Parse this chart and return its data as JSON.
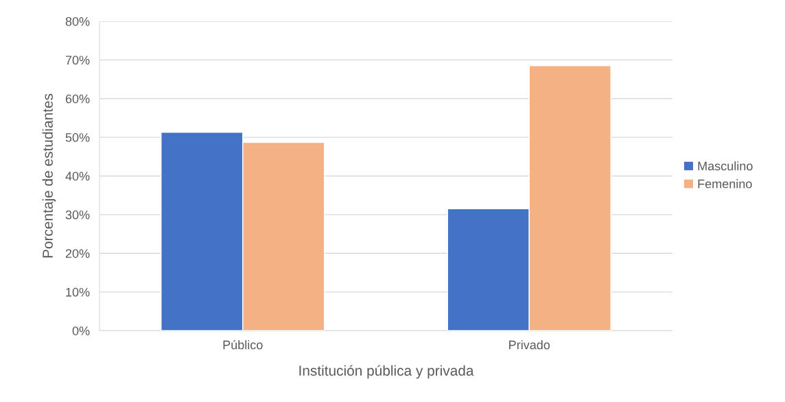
{
  "chart_data": {
    "type": "bar",
    "xlabel": "Institución pública y privada",
    "ylabel": "Porcentaje de estudiantes",
    "categories": [
      "Público",
      "Privado"
    ],
    "series": [
      {
        "name": "Masculino",
        "color": "#4472c4",
        "values": [
          51.3,
          31.5
        ]
      },
      {
        "name": "Femenino",
        "color": "#f4b183",
        "values": [
          48.7,
          68.5
        ]
      }
    ],
    "ylim": [
      0,
      80
    ],
    "yticks": [
      {
        "value": 0,
        "label": "0%"
      },
      {
        "value": 10,
        "label": "10%"
      },
      {
        "value": 20,
        "label": "20%"
      },
      {
        "value": 30,
        "label": "30%"
      },
      {
        "value": 40,
        "label": "40%"
      },
      {
        "value": 50,
        "label": "50%"
      },
      {
        "value": 60,
        "label": "60%"
      },
      {
        "value": 70,
        "label": "70%"
      },
      {
        "value": 80,
        "label": "80%"
      }
    ],
    "grid": "y",
    "legend": "right"
  }
}
